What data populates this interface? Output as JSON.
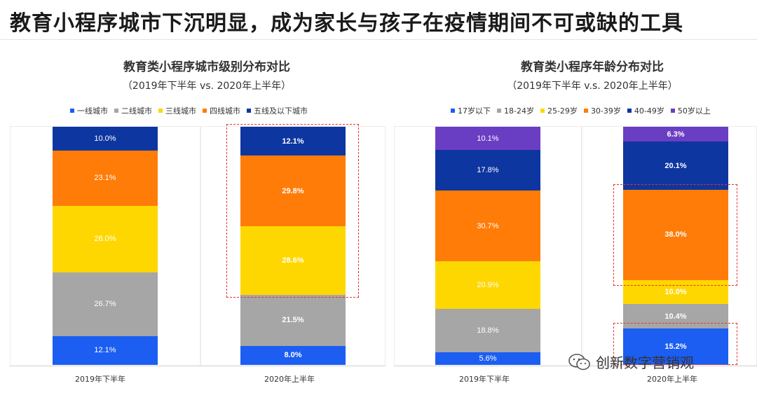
{
  "headline": "教育小程序城市下沉明显，成为家长与孩子在疫情期间不可或缺的工具",
  "watermark": "创新数字营销观",
  "colors": {
    "blue": "#1c5ef2",
    "gray": "#a6a6a6",
    "yellow": "#ffd700",
    "orange": "#ff7c08",
    "navy": "#0e36a0",
    "purple": "#6a3ec3",
    "highlight": "#e8302d"
  },
  "chart_data": [
    {
      "type": "bar",
      "stacked": true,
      "title": "教育类小程序城市级别分布对比",
      "subtitle": "（2019年下半年 vs. 2020年上半年）",
      "categories": [
        "2019年下半年",
        "2020年上半年"
      ],
      "legend_position": "top",
      "series": [
        {
          "name": "一线城市",
          "color": "#1c5ef2",
          "values": [
            12.1,
            8.0
          ],
          "labels": [
            "12.1%",
            "8.0%"
          ]
        },
        {
          "name": "二线城市",
          "color": "#a6a6a6",
          "values": [
            26.7,
            21.5
          ],
          "labels": [
            "26.7%",
            "21.5%"
          ]
        },
        {
          "name": "三线城市",
          "color": "#ffd700",
          "values": [
            28.0,
            28.6
          ],
          "labels": [
            "28.0%",
            "28.6%"
          ]
        },
        {
          "name": "四线城市",
          "color": "#ff7c08",
          "values": [
            23.1,
            29.8
          ],
          "labels": [
            "23.1%",
            "29.8%"
          ]
        },
        {
          "name": "五线及以下城市",
          "color": "#0e36a0",
          "values": [
            10.0,
            12.1
          ],
          "labels": [
            "10.0%",
            "12.1%"
          ]
        }
      ],
      "highlights": [
        "2020年上半年: 三线城市 + 四线城市 + 五线及以下城市"
      ]
    },
    {
      "type": "bar",
      "stacked": true,
      "title": "教育类小程序年龄分布对比",
      "subtitle": "（2019年下半年 v.s. 2020年上半年）",
      "categories": [
        "2019年下半年",
        "2020年上半年"
      ],
      "legend_position": "top",
      "series": [
        {
          "name": "17岁以下",
          "color": "#1c5ef2",
          "values": [
            5.6,
            15.2
          ],
          "labels": [
            "5.6%",
            "15.2%"
          ]
        },
        {
          "name": "18-24岁",
          "color": "#a6a6a6",
          "values": [
            18.8,
            10.4
          ],
          "labels": [
            "18.8%",
            "10.4%"
          ]
        },
        {
          "name": "25-29岁",
          "color": "#ffd700",
          "values": [
            20.9,
            10.0
          ],
          "labels": [
            "20.9%",
            "10.0%"
          ]
        },
        {
          "name": "30-39岁",
          "color": "#ff7c08",
          "values": [
            30.7,
            38.0
          ],
          "labels": [
            "30.7%",
            "38.0%"
          ]
        },
        {
          "name": "40-49岁",
          "color": "#0e36a0",
          "values": [
            17.8,
            20.1
          ],
          "labels": [
            "17.8%",
            "20.1%"
          ]
        },
        {
          "name": "50岁以上",
          "color": "#6a3ec3",
          "values": [
            10.1,
            6.3
          ],
          "labels": [
            "10.1%",
            "6.3%"
          ]
        }
      ],
      "highlights": [
        "2020年上半年: 30-39岁",
        "2020年上半年: 17岁以下"
      ]
    }
  ]
}
